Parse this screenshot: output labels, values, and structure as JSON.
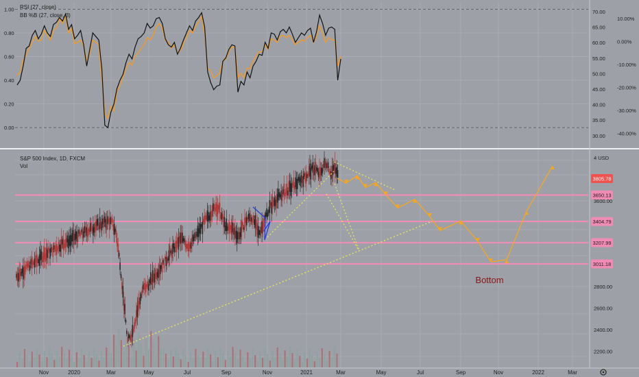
{
  "colors": {
    "background": "#9da0a6",
    "rsi_line": "#111111",
    "bb_line": "#f59a23",
    "support_line": "#f08cb4",
    "current_price_badge": "#ef5350",
    "projection": "#f5a623",
    "trend_lines": "#e8e85a",
    "pattern": "#2b3fd6",
    "candle_up": "#2a2a2a",
    "candle_down": "#b03a3a",
    "bottom_label": "#8b1616"
  },
  "top_pane": {
    "legend_1": "RSI (27, close)",
    "legend_2": "BB %B (27, close, 3)",
    "left_axis_ticks": [
      "1.00",
      "0.80",
      "0.60",
      "0.40",
      "0.20",
      "0.00"
    ],
    "mid_axis_ticks": [
      "70.00",
      "65.00",
      "60.00",
      "55.00",
      "50.00",
      "45.00",
      "40.00",
      "35.00",
      "30.00"
    ],
    "right_axis_ticks": [
      "10.00%",
      "0.00%",
      "-10.00%",
      "-20.00%",
      "-30.00%",
      "-40.00%"
    ]
  },
  "main_pane": {
    "legend_1": "S&P 500 Index, 1D, FXCM",
    "legend_2": "Vol",
    "axis_top_label": "4 USD",
    "right_axis_ticks": [
      "3600.00",
      "2800.00",
      "2600.00",
      "2400.00",
      "2200.00"
    ],
    "current_price": "3805.78",
    "levels": [
      "3650.13",
      "3404.79",
      "3207.99",
      "3011.18"
    ],
    "annotation": "Bottom"
  },
  "time_axis": [
    "Nov",
    "2020",
    "Mar",
    "May",
    "Jul",
    "Sep",
    "Nov",
    "2021",
    "Mar",
    "May",
    "Jul",
    "Sep",
    "Nov",
    "2022",
    "Mar"
  ],
  "chart_data": [
    {
      "type": "line",
      "title": "RSI (27, close) / BB %B (27, close, 3)",
      "ylim": [
        -0.08,
        1.02
      ],
      "series": [
        {
          "name": "RSI (27, close)",
          "values": [
            0.36,
            0.4,
            0.52,
            0.67,
            0.69,
            0.78,
            0.82,
            0.75,
            0.79,
            0.86,
            0.8,
            0.77,
            0.87,
            0.89,
            0.93,
            0.9,
            0.96,
            0.83,
            0.87,
            0.75,
            0.78,
            0.82,
            0.7,
            0.52,
            0.66,
            0.8,
            0.77,
            0.74,
            0.5,
            0.02,
            0.0,
            0.13,
            0.2,
            0.33,
            0.4,
            0.45,
            0.55,
            0.62,
            0.58,
            0.68,
            0.75,
            0.77,
            0.8,
            0.88,
            0.84,
            0.86,
            0.92,
            0.93,
            0.88,
            0.75,
            0.7,
            0.68,
            0.72,
            0.62,
            0.67,
            0.74,
            0.8,
            0.86,
            0.82,
            0.9,
            0.93,
            0.97,
            0.85,
            0.47,
            0.38,
            0.32,
            0.35,
            0.36,
            0.56,
            0.59,
            0.66,
            0.7,
            0.69,
            0.3,
            0.39,
            0.36,
            0.47,
            0.42,
            0.52,
            0.56,
            0.62,
            0.61,
            0.72,
            0.67,
            0.8,
            0.79,
            0.74,
            0.81,
            0.83,
            0.8,
            0.85,
            0.79,
            0.72,
            0.76,
            0.8,
            0.78,
            0.82,
            0.84,
            0.72,
            0.81,
            0.95,
            0.88,
            0.78,
            0.84,
            0.85,
            0.83,
            0.4,
            0.58
          ]
        },
        {
          "name": "BB %B (27, close, 3)",
          "values": [
            0.44,
            0.47,
            0.57,
            0.61,
            0.67,
            0.72,
            0.77,
            0.73,
            0.74,
            0.82,
            0.78,
            0.74,
            0.82,
            0.84,
            0.92,
            0.88,
            0.94,
            0.8,
            0.84,
            0.71,
            0.72,
            0.74,
            0.69,
            0.57,
            0.62,
            0.74,
            0.72,
            0.7,
            0.42,
            0.12,
            0.08,
            0.18,
            0.14,
            0.31,
            0.35,
            0.43,
            0.49,
            0.55,
            0.53,
            0.6,
            0.63,
            0.67,
            0.7,
            0.76,
            0.74,
            0.78,
            0.85,
            0.88,
            0.84,
            0.74,
            0.72,
            0.67,
            0.7,
            0.63,
            0.65,
            0.71,
            0.76,
            0.82,
            0.8,
            0.86,
            0.89,
            0.94,
            0.8,
            0.5,
            0.48,
            0.42,
            0.44,
            0.46,
            0.56,
            0.58,
            0.64,
            0.68,
            0.68,
            0.42,
            0.46,
            0.42,
            0.5,
            0.5,
            0.56,
            0.6,
            0.64,
            0.64,
            0.7,
            0.66,
            0.75,
            0.74,
            0.72,
            0.77,
            0.78,
            0.76,
            0.78,
            0.74,
            0.7,
            0.72,
            0.74,
            0.73,
            0.76,
            0.78,
            0.72,
            0.77,
            0.86,
            0.8,
            0.72,
            0.76,
            0.74,
            0.74,
            0.52,
            0.6
          ]
        }
      ]
    },
    {
      "type": "line",
      "title": "S&P 500 Index, 1D, FXCM",
      "ylim": [
        2150,
        4000
      ],
      "series": [
        {
          "name": "S&P 500 Index",
          "values": [
            2900,
            2925,
            2960,
            2990,
            3010,
            3030,
            3060,
            3090,
            3110,
            3130,
            3150,
            3175,
            3200,
            3215,
            3230,
            3250,
            3275,
            3290,
            3310,
            3330,
            3350,
            3370,
            3380,
            3395,
            3405,
            3390,
            3290,
            3020,
            2650,
            2300,
            2350,
            2500,
            2650,
            2780,
            2800,
            2850,
            2900,
            2950,
            3000,
            3050,
            3100,
            3150,
            3200,
            3250,
            3200,
            3180,
            3230,
            3280,
            3340,
            3400,
            3450,
            3500,
            3550,
            3500,
            3400,
            3330,
            3350,
            3300,
            3270,
            3350,
            3420,
            3450,
            3400,
            3300,
            3350,
            3460,
            3530,
            3580,
            3620,
            3650,
            3680,
            3700,
            3730,
            3760,
            3790,
            3810,
            3850,
            3880,
            3900,
            3830,
            3920,
            3950,
            3850,
            3900,
            3806
          ]
        },
        {
          "name": "Projection",
          "values": [
            3806,
            3760,
            3830,
            3720,
            3765,
            3650,
            3530,
            3610,
            3450,
            3320,
            3410,
            3220,
            3030,
            3050,
            3500,
            3920
          ]
        }
      ],
      "levels": [
        3650.13,
        3404.79,
        3207.99,
        3011.18
      ],
      "annotations": [
        "Bottom"
      ]
    }
  ]
}
